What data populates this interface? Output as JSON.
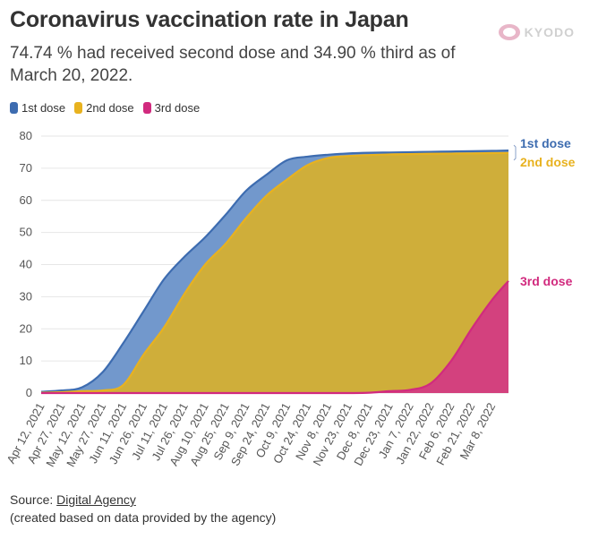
{
  "header": {
    "title": "Coronavirus vaccination rate in Japan",
    "subtitle": "74.74 % had received second dose and 34.90 % third as of March 20, 2022.",
    "logo_text": "KYODO"
  },
  "legend": [
    {
      "label": "1st dose",
      "color": "#3d6cb0"
    },
    {
      "label": "2nd dose",
      "color": "#e8b21f"
    },
    {
      "label": "3rd dose",
      "color": "#d12a7e"
    }
  ],
  "footer": {
    "source_prefix": "Source: ",
    "source_link": "Digital Agency",
    "note": "(created based on data provided by the agency)"
  },
  "colors": {
    "dose1_line": "#3d6cb0",
    "dose1_fill": "#7298cc",
    "dose2_line": "#e8b21f",
    "dose2_fill": "#cfae3a",
    "dose3_line": "#d12a7e",
    "dose3_fill": "#d3417e",
    "grid": "#e6e6e6"
  },
  "chart_data": {
    "type": "area",
    "title": "Coronavirus vaccination rate in Japan",
    "xlabel": "",
    "ylabel": "",
    "ylim": [
      0,
      80
    ],
    "xlim": [
      "2021-04-12",
      "2022-03-20"
    ],
    "yticks": [
      0,
      10,
      20,
      30,
      40,
      50,
      60,
      70,
      80
    ],
    "xticks": [
      "Apr 12, 2021",
      "Apr 27, 2021",
      "May 12, 2021",
      "May 27, 2021",
      "Jun 11, 2021",
      "Jun 26, 2021",
      "Jul 11, 2021",
      "Jul 26, 2021",
      "Aug 10, 2021",
      "Aug 25, 2021",
      "Sep 9, 2021",
      "Sep 24, 2021",
      "Oct 9, 2021",
      "Oct 24, 2021",
      "Nov 8, 2021",
      "Nov 23, 2021",
      "Dec 8, 2021",
      "Dec 23, 2021",
      "Jan 7, 2022",
      "Jan 22, 2022",
      "Feb 6, 2022",
      "Feb 21, 2022",
      "Mar 8, 2022"
    ],
    "grid": true,
    "x_days": [
      0,
      15,
      30,
      45,
      60,
      75,
      90,
      105,
      120,
      135,
      150,
      165,
      180,
      195,
      210,
      225,
      240,
      255,
      270,
      285,
      300,
      315,
      330,
      342
    ],
    "series": [
      {
        "name": "1st dose",
        "end_label": "1st dose",
        "values": [
          0.4,
          0.8,
          1.8,
          6.5,
          15.5,
          25.5,
          35.5,
          42.5,
          48.5,
          55.5,
          63.0,
          68.0,
          72.5,
          73.6,
          74.2,
          74.6,
          74.8,
          74.9,
          75.0,
          75.1,
          75.2,
          75.3,
          75.4,
          75.5
        ]
      },
      {
        "name": "2nd dose",
        "end_label": "2nd dose",
        "values": [
          0.1,
          0.3,
          0.6,
          0.8,
          2.5,
          12.0,
          20.5,
          31.0,
          40.0,
          46.5,
          54.5,
          61.5,
          66.5,
          71.0,
          73.2,
          73.8,
          74.1,
          74.3,
          74.4,
          74.5,
          74.55,
          74.6,
          74.7,
          74.74
        ]
      },
      {
        "name": "3rd dose",
        "end_label": "3rd dose",
        "values": [
          0,
          0,
          0,
          0,
          0,
          0,
          0,
          0,
          0,
          0,
          0,
          0,
          0,
          0,
          0,
          0,
          0.1,
          0.6,
          1.0,
          3.0,
          10.0,
          20.0,
          29.0,
          34.9
        ]
      }
    ]
  }
}
